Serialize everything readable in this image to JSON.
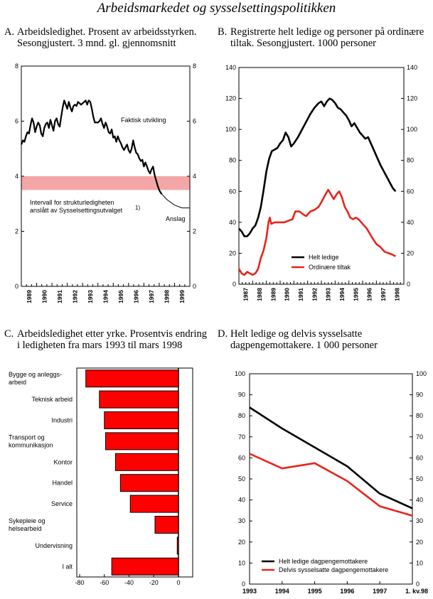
{
  "page_title": "Arbeidsmarkedet og sysselsettingspolitikken",
  "panels": {
    "a": {
      "letter": "A.",
      "title_line1": "Arbeidsledighet. Prosent av arbeidsstyrken.",
      "title_line2": "Sesongjustert. 3 mnd. gl. gjennomsnitt"
    },
    "b": {
      "letter": "B.",
      "title_line1": "Registrerte helt ledige og personer på ordinære",
      "title_line2": "tiltak. Sesongjustert. 1000 personer"
    },
    "c": {
      "letter": "C.",
      "title_line1": "Arbeidsledighet etter yrke. Prosentvis endring",
      "title_line2": "i ledigheten fra mars 1993 til mars 1998"
    },
    "d": {
      "letter": "D.",
      "title_line1": "Helt ledige og delvis sysselsatte",
      "title_line2": "dagpengemottakere. 1 000 personer"
    }
  },
  "chart_data": [
    {
      "type": "line",
      "id": "A",
      "ylim": [
        0,
        8
      ],
      "yticks": [
        0,
        2,
        4,
        6,
        8
      ],
      "x_tick_labels": [
        "1989",
        "1990",
        "1991",
        "1992",
        "1993",
        "1994",
        "1995",
        "1996",
        "1997",
        "1998",
        "1999"
      ],
      "xlim": [
        1989,
        2000
      ],
      "band": {
        "from": 3.5,
        "to": 4.0,
        "color": "#f4a6a6"
      },
      "annotations": {
        "actual": "Faktisk utvikling",
        "interval_line1": "Intervall for strukturledigheten",
        "interval_line2": "anslått av Sysselsettingsutvalget",
        "footnote": "1)",
        "forecast": "Anslag"
      },
      "series": [
        {
          "name": "Faktisk utvikling",
          "color": "#000000",
          "style": "solid",
          "points": [
            [
              1989.0,
              5.15
            ],
            [
              1989.1,
              5.3
            ],
            [
              1989.2,
              5.25
            ],
            [
              1989.3,
              5.45
            ],
            [
              1989.4,
              5.6
            ],
            [
              1989.5,
              5.55
            ],
            [
              1989.6,
              5.85
            ],
            [
              1989.7,
              6.1
            ],
            [
              1989.8,
              5.95
            ],
            [
              1989.9,
              5.6
            ],
            [
              1990.0,
              5.8
            ],
            [
              1990.1,
              5.95
            ],
            [
              1990.2,
              5.85
            ],
            [
              1990.3,
              5.55
            ],
            [
              1990.4,
              5.45
            ],
            [
              1990.5,
              5.75
            ],
            [
              1990.6,
              5.9
            ],
            [
              1990.7,
              5.95
            ],
            [
              1990.8,
              5.75
            ],
            [
              1990.9,
              6.05
            ],
            [
              1991.0,
              5.85
            ],
            [
              1991.1,
              5.65
            ],
            [
              1991.2,
              6.0
            ],
            [
              1991.3,
              6.1
            ],
            [
              1991.4,
              5.9
            ],
            [
              1991.5,
              5.8
            ],
            [
              1991.6,
              6.15
            ],
            [
              1991.7,
              6.5
            ],
            [
              1991.8,
              6.75
            ],
            [
              1991.9,
              6.6
            ],
            [
              1992.0,
              6.45
            ],
            [
              1992.1,
              6.7
            ],
            [
              1992.2,
              6.5
            ],
            [
              1992.3,
              6.35
            ],
            [
              1992.4,
              6.55
            ],
            [
              1992.5,
              6.6
            ],
            [
              1992.6,
              6.55
            ],
            [
              1992.7,
              6.7
            ],
            [
              1992.8,
              6.65
            ],
            [
              1992.9,
              6.6
            ],
            [
              1993.0,
              6.65
            ],
            [
              1993.1,
              6.7
            ],
            [
              1993.2,
              6.75
            ],
            [
              1993.3,
              6.6
            ],
            [
              1993.4,
              6.75
            ],
            [
              1993.5,
              6.7
            ],
            [
              1993.6,
              6.45
            ],
            [
              1993.7,
              6.15
            ],
            [
              1993.8,
              5.95
            ],
            [
              1993.9,
              5.95
            ],
            [
              1994.0,
              5.95
            ],
            [
              1994.1,
              6.0
            ],
            [
              1994.2,
              6.1
            ],
            [
              1994.3,
              5.9
            ],
            [
              1994.4,
              5.75
            ],
            [
              1994.5,
              5.95
            ],
            [
              1994.6,
              5.8
            ],
            [
              1994.7,
              5.6
            ],
            [
              1994.8,
              5.55
            ],
            [
              1994.9,
              5.7
            ],
            [
              1995.0,
              5.4
            ],
            [
              1995.1,
              5.45
            ],
            [
              1995.2,
              5.25
            ],
            [
              1995.3,
              5.45
            ],
            [
              1995.4,
              5.3
            ],
            [
              1995.5,
              5.2
            ],
            [
              1995.6,
              5.05
            ],
            [
              1995.7,
              4.95
            ],
            [
              1995.8,
              5.05
            ],
            [
              1995.9,
              5.15
            ],
            [
              1996.0,
              4.95
            ],
            [
              1996.1,
              4.85
            ],
            [
              1996.2,
              5.0
            ],
            [
              1996.3,
              5.3
            ],
            [
              1996.4,
              5.05
            ],
            [
              1996.5,
              4.85
            ],
            [
              1996.6,
              4.8
            ],
            [
              1996.7,
              4.65
            ],
            [
              1996.8,
              4.55
            ],
            [
              1996.9,
              4.6
            ],
            [
              1997.0,
              4.35
            ],
            [
              1997.1,
              4.5
            ],
            [
              1997.2,
              4.35
            ],
            [
              1997.3,
              4.2
            ],
            [
              1997.4,
              4.1
            ],
            [
              1997.5,
              4.25
            ],
            [
              1997.6,
              4.35
            ],
            [
              1997.7,
              4.05
            ],
            [
              1997.8,
              3.85
            ],
            [
              1997.9,
              3.65
            ],
            [
              1998.0,
              3.5
            ],
            [
              1998.1,
              3.4
            ],
            [
              1998.17,
              3.35
            ]
          ]
        },
        {
          "name": "Anslag",
          "color": "#000000",
          "style": "thin",
          "points": [
            [
              1998.17,
              3.35
            ],
            [
              1998.5,
              3.15
            ],
            [
              1999.0,
              2.95
            ],
            [
              1999.5,
              2.85
            ],
            [
              2000.0,
              2.85
            ]
          ]
        }
      ]
    },
    {
      "type": "line",
      "id": "B",
      "ylim": [
        0,
        140
      ],
      "yticks": [
        0,
        20,
        40,
        60,
        80,
        100,
        120,
        140
      ],
      "x_tick_labels": [
        "1987",
        "1988",
        "1989",
        "1990",
        "1991",
        "1992",
        "1993",
        "1994",
        "1995",
        "1996",
        "1997",
        "1998"
      ],
      "xlim": [
        1987,
        1999
      ],
      "series": [
        {
          "name": "Helt ledige",
          "color": "#000000",
          "points": [
            [
              1987.0,
              36
            ],
            [
              1987.2,
              34
            ],
            [
              1987.4,
              31
            ],
            [
              1987.6,
              31
            ],
            [
              1987.8,
              33
            ],
            [
              1988.0,
              36
            ],
            [
              1988.2,
              38
            ],
            [
              1988.4,
              43
            ],
            [
              1988.6,
              50
            ],
            [
              1988.8,
              61
            ],
            [
              1989.0,
              73
            ],
            [
              1989.2,
              81
            ],
            [
              1989.4,
              86
            ],
            [
              1989.6,
              87
            ],
            [
              1989.8,
              88
            ],
            [
              1990.0,
              91
            ],
            [
              1990.2,
              93
            ],
            [
              1990.4,
              98
            ],
            [
              1990.6,
              95
            ],
            [
              1990.8,
              89
            ],
            [
              1991.0,
              91
            ],
            [
              1991.3,
              95
            ],
            [
              1991.6,
              100
            ],
            [
              1991.9,
              105
            ],
            [
              1992.2,
              110
            ],
            [
              1992.5,
              114
            ],
            [
              1992.8,
              117
            ],
            [
              1993.0,
              118
            ],
            [
              1993.2,
              115
            ],
            [
              1993.4,
              118
            ],
            [
              1993.6,
              120
            ],
            [
              1993.8,
              119
            ],
            [
              1994.0,
              117
            ],
            [
              1994.2,
              114
            ],
            [
              1994.4,
              113
            ],
            [
              1994.6,
              111
            ],
            [
              1994.8,
              109
            ],
            [
              1995.0,
              106
            ],
            [
              1995.2,
              102
            ],
            [
              1995.4,
              104
            ],
            [
              1995.6,
              101
            ],
            [
              1995.8,
              98
            ],
            [
              1996.0,
              96
            ],
            [
              1996.2,
              94
            ],
            [
              1996.4,
              95
            ],
            [
              1996.6,
              91
            ],
            [
              1996.8,
              87
            ],
            [
              1997.0,
              83
            ],
            [
              1997.3,
              77
            ],
            [
              1997.6,
              72
            ],
            [
              1997.9,
              67
            ],
            [
              1998.2,
              62
            ],
            [
              1998.4,
              60
            ]
          ]
        },
        {
          "name": "Ordinære tiltak",
          "color": "#e8241c",
          "points": [
            [
              1987.0,
              10
            ],
            [
              1987.2,
              7
            ],
            [
              1987.4,
              6
            ],
            [
              1987.6,
              8
            ],
            [
              1987.8,
              7
            ],
            [
              1988.0,
              6
            ],
            [
              1988.2,
              7
            ],
            [
              1988.4,
              10
            ],
            [
              1988.6,
              17
            ],
            [
              1988.8,
              22
            ],
            [
              1989.0,
              30
            ],
            [
              1989.15,
              40
            ],
            [
              1989.25,
              43
            ],
            [
              1989.35,
              39
            ],
            [
              1989.6,
              40
            ],
            [
              1990.0,
              40
            ],
            [
              1990.3,
              40
            ],
            [
              1990.6,
              41
            ],
            [
              1990.9,
              42
            ],
            [
              1991.1,
              47
            ],
            [
              1991.4,
              47
            ],
            [
              1991.7,
              45
            ],
            [
              1991.9,
              44
            ],
            [
              1992.2,
              47
            ],
            [
              1992.5,
              48
            ],
            [
              1992.8,
              50
            ],
            [
              1993.0,
              53
            ],
            [
              1993.3,
              58
            ],
            [
              1993.5,
              61
            ],
            [
              1993.7,
              58
            ],
            [
              1993.9,
              55
            ],
            [
              1994.1,
              58
            ],
            [
              1994.3,
              60
            ],
            [
              1994.5,
              56
            ],
            [
              1994.7,
              50
            ],
            [
              1994.9,
              47
            ],
            [
              1995.1,
              43
            ],
            [
              1995.3,
              42
            ],
            [
              1995.5,
              43
            ],
            [
              1995.7,
              42
            ],
            [
              1995.9,
              40
            ],
            [
              1996.1,
              38
            ],
            [
              1996.3,
              36
            ],
            [
              1996.5,
              33
            ],
            [
              1996.7,
              30
            ],
            [
              1997.0,
              26
            ],
            [
              1997.3,
              24
            ],
            [
              1997.6,
              21
            ],
            [
              1997.9,
              20
            ],
            [
              1998.2,
              19
            ],
            [
              1998.4,
              18
            ]
          ]
        }
      ]
    },
    {
      "type": "bar",
      "id": "C",
      "orientation": "horizontal",
      "xlim": [
        -80,
        0
      ],
      "xticks": [
        -80,
        -60,
        -40,
        -20,
        0
      ],
      "bar_color": "#ff0000",
      "categories": [
        [
          "Bygge og anleggs-",
          "arbeid"
        ],
        [
          "Teknisk arbeid"
        ],
        [
          "Industri"
        ],
        [
          "Transport og",
          "kommunikasjon"
        ],
        [
          "Kontor"
        ],
        [
          "Handel"
        ],
        [
          "Service"
        ],
        [
          "Sykepleie og",
          "helsearbeid"
        ],
        [
          "Undervisning"
        ],
        [
          "I alt"
        ]
      ],
      "values": [
        -75,
        -64,
        -60,
        -59,
        -51,
        -47,
        -39,
        -19,
        -1,
        -54
      ]
    },
    {
      "type": "line",
      "id": "D",
      "ylim": [
        0,
        100
      ],
      "yticks": [
        0,
        10,
        20,
        30,
        40,
        50,
        60,
        70,
        80,
        90,
        100
      ],
      "categories": [
        "1993",
        "1994",
        "1995",
        "1996",
        "1997",
        "1. kv.98"
      ],
      "series": [
        {
          "name": "Helt ledige dagpengemottakere",
          "color": "#000000",
          "values": [
            84,
            74,
            65,
            56,
            43,
            36
          ]
        },
        {
          "name": "Delvis sysselsatte dagpengemottakere",
          "color": "#e8241c",
          "values": [
            62,
            55,
            57.5,
            49,
            37,
            32.5
          ]
        }
      ]
    }
  ]
}
